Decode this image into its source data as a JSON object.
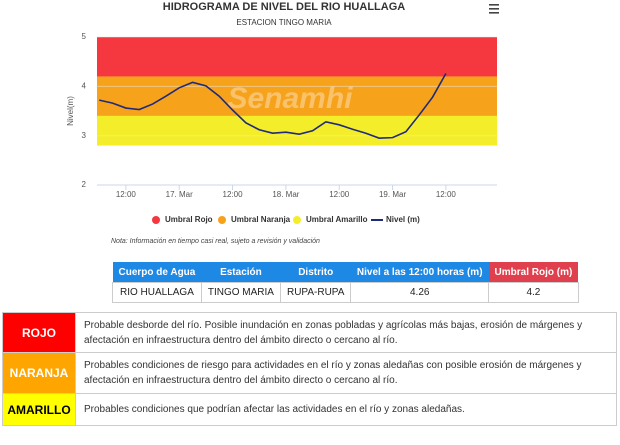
{
  "chart_data": {
    "type": "line",
    "title": "HIDROGRAMA DE NIVEL DEL RIO HUALLAGA",
    "subtitle": "ESTACION TINGO MARIA",
    "y_label": "Nivel(m)",
    "watermark": "Senamhi",
    "x": [
      6,
      9,
      12,
      15,
      18,
      21,
      24,
      27,
      30,
      33,
      36,
      39,
      42,
      45,
      48,
      51,
      54,
      57,
      60,
      63,
      66,
      69,
      72,
      75,
      78,
      81,
      84
    ],
    "series": [
      {
        "name": "Nivel (m)",
        "color": "#1f2a7a",
        "values": [
          3.72,
          3.66,
          3.56,
          3.53,
          3.64,
          3.8,
          3.97,
          4.08,
          4.01,
          3.8,
          3.52,
          3.26,
          3.12,
          3.05,
          3.07,
          3.03,
          3.1,
          3.28,
          3.22,
          3.13,
          3.05,
          2.95,
          2.96,
          3.08,
          3.42,
          3.78,
          4.26
        ]
      }
    ],
    "bands": [
      {
        "name": "Umbral Rojo",
        "color": "#f5373f",
        "from": 4.2,
        "to": 5
      },
      {
        "name": "Umbral Naranja",
        "color": "#f7a21b",
        "from": 3.4,
        "to": 4.2
      },
      {
        "name": "Umbral Amarillo",
        "color": "#f4ee2a",
        "from": 2.8,
        "to": 3.4
      }
    ],
    "xlim": [
      5.5,
      95.5
    ],
    "xticks": [
      {
        "value": 12,
        "label": "12:00"
      },
      {
        "value": 24,
        "label": "17. Mar"
      },
      {
        "value": 36,
        "label": "12:00"
      },
      {
        "value": 48,
        "label": "18. Mar"
      },
      {
        "value": 60,
        "label": "12:00"
      },
      {
        "value": 72,
        "label": "19. Mar"
      },
      {
        "value": 84,
        "label": "12:00"
      }
    ],
    "ylim": [
      2,
      5
    ],
    "yticks": [
      2,
      3,
      4,
      5
    ],
    "note": "Nota: Información en tiempo casi real, sujeto a revisión y validación"
  },
  "table": {
    "headers": [
      "Cuerpo de Agua",
      "Estación",
      "Distrito",
      "Nivel a las 12:00 horas (m)",
      "Umbral Rojo (m)"
    ],
    "rows": [
      [
        "RIO HUALLAGA",
        "TINGO MARIA",
        "RUPA-RUPA",
        "4.26",
        "4.2"
      ]
    ]
  },
  "alerts": [
    {
      "level": "ROJO",
      "text": "Probable desborde del río. Posible inundación en zonas pobladas y agrícolas más bajas, erosión de márgenes y afectación en infraestructura dentro del ámbito directo o cercano al río."
    },
    {
      "level": "NARANJA",
      "text": "Probables condiciones de riesgo para actividades en el río y zonas aledañas con posible erosión de márgenes y afectación en infraestructura dentro del ámbito directo o cercano al río."
    },
    {
      "level": "AMARILLO",
      "text": "Probables condiciones que podrían afectar las actividades en el río y zonas aledañas."
    }
  ]
}
